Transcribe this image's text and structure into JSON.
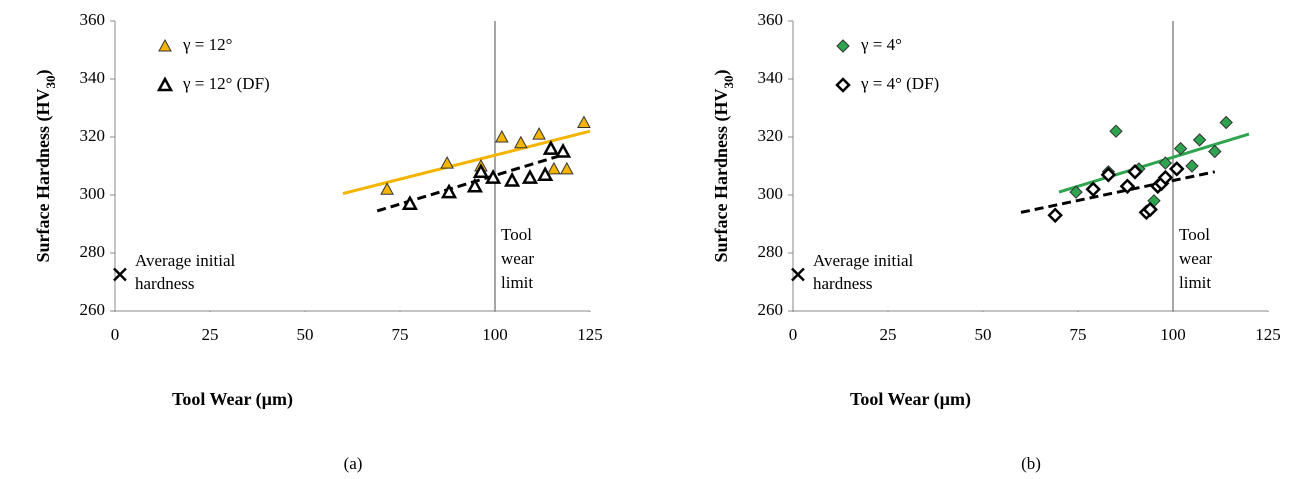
{
  "chart_data": [
    {
      "type": "scatter",
      "caption": "(a)",
      "x_label": "Tool Wear (µm)",
      "y_label_parts": [
        "Surface Hardness (HV",
        "30",
        ")"
      ],
      "xlim": [
        0,
        125
      ],
      "ylim": [
        260,
        360
      ],
      "xticks": [
        0,
        25,
        50,
        75,
        100,
        125
      ],
      "yticks": [
        260,
        280,
        300,
        320,
        340,
        360
      ],
      "series": [
        {
          "name": "γ = 12°",
          "color": "#f5b400",
          "marker": "triangle",
          "x": [
            71.6,
            87.4,
            96.3,
            101.8,
            106.8,
            111.6,
            115.5,
            118.9,
            123.4
          ],
          "values": [
            302,
            311,
            310,
            320,
            318,
            321,
            309,
            309,
            325
          ],
          "trend_x": [
            60,
            125
          ],
          "trend_y": [
            300.5,
            322
          ],
          "trend_dash": false
        },
        {
          "name": "γ = 12° (DF)",
          "color": "#000000",
          "marker": "triangle-open",
          "x": [
            77.6,
            87.9,
            94.7,
            96.3,
            99.5,
            104.5,
            109.2,
            113.2,
            114.7,
            117.9
          ],
          "values": [
            297,
            301,
            303,
            308,
            306,
            305,
            306,
            307,
            316,
            315
          ],
          "trend_x": [
            69,
            117
          ],
          "trend_y": [
            294.5,
            313.5
          ],
          "trend_dash": true
        }
      ],
      "initial_hardness": {
        "x": 1.3,
        "y": 272.6,
        "label": [
          "Average initial",
          "hardness"
        ]
      },
      "wear_limit": {
        "x": 100,
        "label": [
          "Tool",
          "wear",
          "limit"
        ]
      }
    },
    {
      "type": "scatter",
      "caption": "(b)",
      "x_label": "Tool Wear (µm)",
      "y_label_parts": [
        "Surface Hardness (HV",
        "30",
        ")"
      ],
      "xlim": [
        0,
        125
      ],
      "ylim": [
        260,
        360
      ],
      "xticks": [
        0,
        25,
        50,
        75,
        100,
        125
      ],
      "yticks": [
        260,
        280,
        300,
        320,
        340,
        360
      ],
      "series": [
        {
          "name": "γ = 4°",
          "color": "#2ea44f",
          "marker": "diamond",
          "x": [
            74.5,
            85,
            83,
            91,
            95,
            98,
            102,
            105,
            107,
            111,
            114
          ],
          "values": [
            301,
            322,
            308,
            309,
            298,
            311,
            316,
            310,
            319,
            315,
            325
          ],
          "trend_x": [
            70,
            120
          ],
          "trend_y": [
            301,
            321
          ],
          "trend_dash": false
        },
        {
          "name": "γ = 4° (DF)",
          "color": "#000000",
          "marker": "diamond-open",
          "x": [
            69,
            79,
            83,
            88,
            90,
            93,
            94,
            96,
            97,
            98,
            101
          ],
          "values": [
            293,
            302,
            307,
            303,
            308,
            294,
            295,
            303,
            304,
            306,
            309
          ],
          "trend_x": [
            60,
            111
          ],
          "trend_y": [
            294,
            308
          ],
          "trend_dash": true
        }
      ],
      "initial_hardness": {
        "x": 1.3,
        "y": 272.6,
        "label": [
          "Average initial",
          "hardness"
        ]
      },
      "wear_limit": {
        "x": 100,
        "label": [
          "Tool",
          "wear",
          "limit"
        ]
      }
    }
  ]
}
